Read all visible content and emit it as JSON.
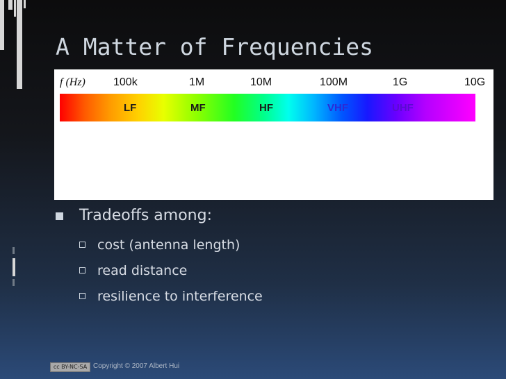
{
  "slide": {
    "title": "A Matter of Frequencies",
    "bullet_main": "Tradeoffs among:",
    "sub_bullets": [
      "cost (antenna length)",
      "read distance",
      "resilience to interference"
    ],
    "footer_badge": "cc BY-NC-SA",
    "copyright": "Copyright © 2007 Albert Hui"
  },
  "figure": {
    "axis_label": "f (Hz)",
    "ticks": [
      "100k",
      "1M",
      "10M",
      "100M",
      "1G",
      "10G"
    ],
    "bands": [
      {
        "label": "LF",
        "color": "#1a1a1a"
      },
      {
        "label": "MF",
        "color": "#1a1a1a"
      },
      {
        "label": "HF",
        "color": "#1a1a1a"
      },
      {
        "label": "VHF",
        "color": "#2b2bd6"
      },
      {
        "label": "UHF",
        "color": "#5a0ad1"
      }
    ]
  },
  "colors": {
    "title_text": "#cfd7e0",
    "body_text": "#d8dde5"
  }
}
